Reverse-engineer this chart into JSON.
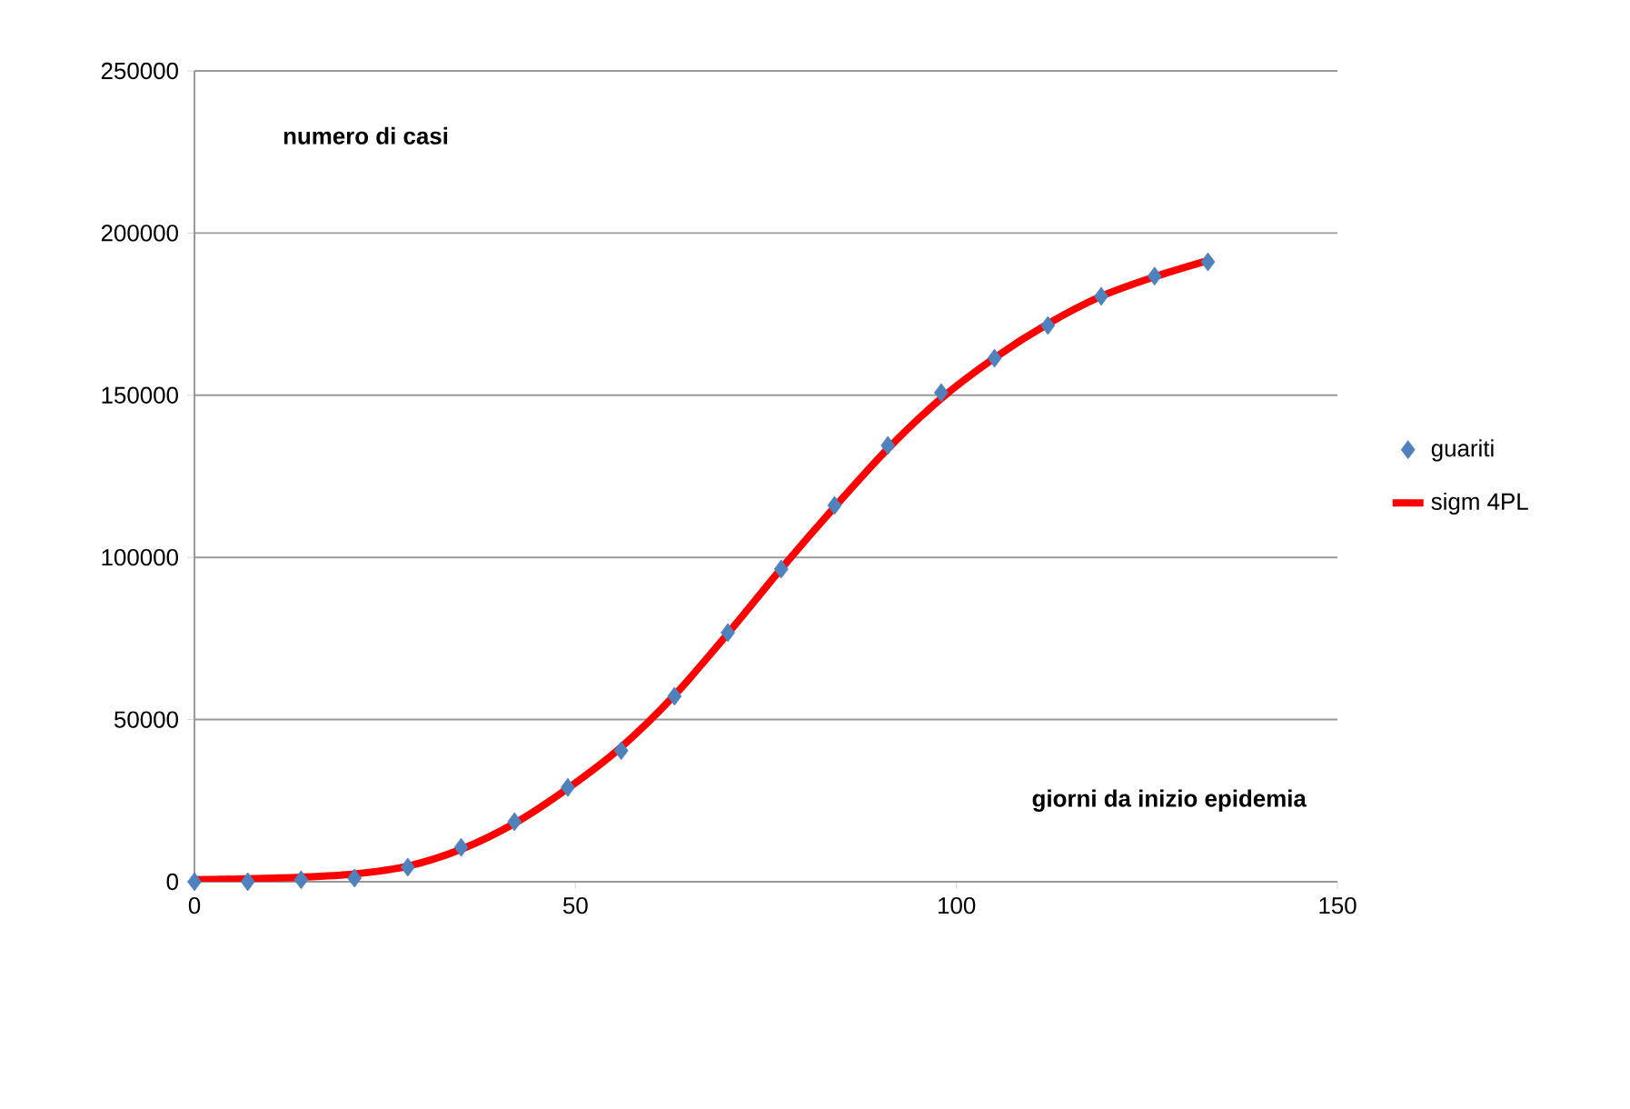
{
  "chart_data": {
    "type": "line",
    "xlabel": "giorni da inizio epidemia",
    "ylabel": "numero di casi",
    "xlim": [
      0,
      150
    ],
    "ylim": [
      0,
      250000
    ],
    "xticks": [
      0,
      50,
      100,
      150
    ],
    "yticks": [
      0,
      50000,
      100000,
      150000,
      200000,
      250000
    ],
    "grid": "y",
    "legend": "right",
    "series": [
      {
        "name": "guariti",
        "type": "scatter",
        "marker": "diamond",
        "color": "#4f81bd",
        "x": [
          0,
          7,
          14,
          21,
          28,
          35,
          42,
          49,
          56,
          63,
          70,
          77,
          84,
          91,
          98,
          105,
          112,
          119,
          126,
          133
        ],
        "values": [
          0,
          0,
          600,
          1100,
          4500,
          10600,
          18500,
          29100,
          40400,
          57200,
          76800,
          96400,
          116000,
          134500,
          150800,
          161400,
          171500,
          180500,
          186700,
          191100
        ]
      },
      {
        "name": "sigm 4PL",
        "marker": "none",
        "color": "#ff0000",
        "x": [
          0,
          7,
          14,
          21,
          28,
          35,
          42,
          49,
          56,
          63,
          70,
          77,
          84,
          91,
          98,
          105,
          112,
          119,
          126,
          133
        ],
        "values": [
          600,
          900,
          1400,
          2400,
          4800,
          10000,
          18000,
          28800,
          41500,
          57500,
          76500,
          96500,
          115500,
          133500,
          149000,
          161500,
          172000,
          180500,
          186500,
          191500
        ]
      }
    ]
  }
}
